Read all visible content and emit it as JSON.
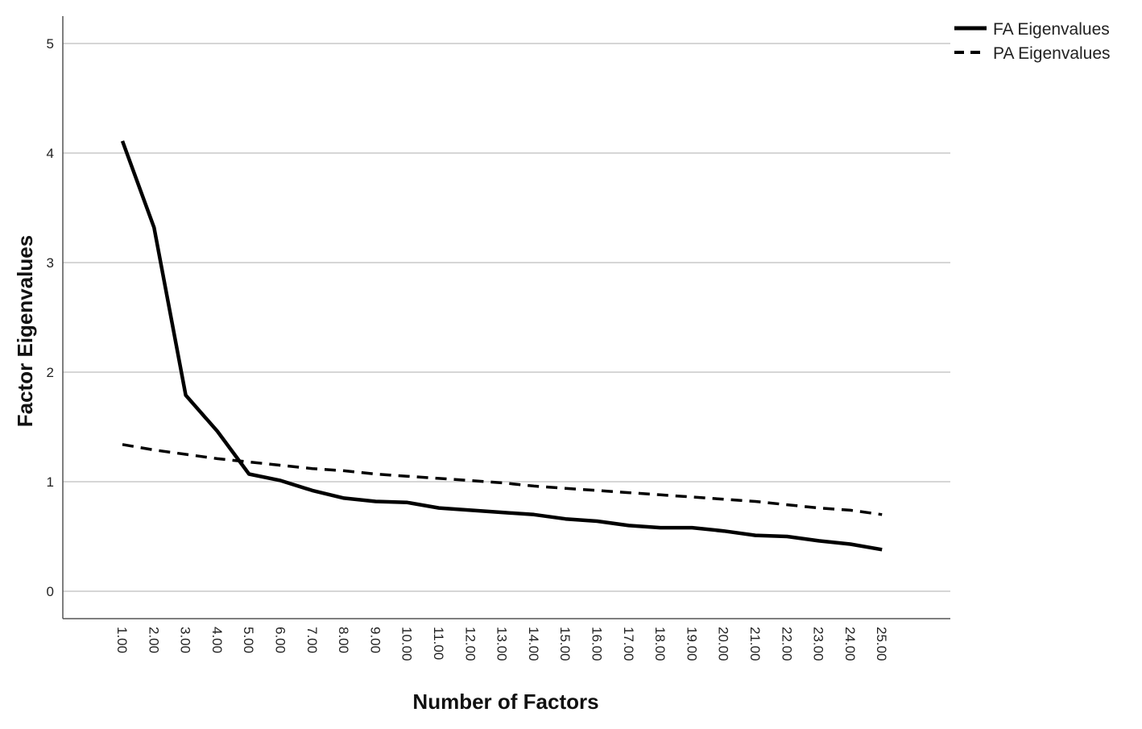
{
  "chart_data": {
    "type": "line",
    "title": "",
    "xlabel": "Number of Factors",
    "ylabel": "Factor Eigenvalues",
    "categories": [
      "1.00",
      "2.00",
      "3.00",
      "4.00",
      "5.00",
      "6.00",
      "7.00",
      "8.00",
      "9.00",
      "10.00",
      "11.00",
      "12.00",
      "13.00",
      "14.00",
      "15.00",
      "16.00",
      "17.00",
      "18.00",
      "19.00",
      "20.00",
      "21.00",
      "22.00",
      "23.00",
      "24.00",
      "25.00"
    ],
    "ylim": [
      -0.25,
      5.25
    ],
    "yticks": [
      0,
      1,
      2,
      3,
      4,
      5
    ],
    "grid": "horizontal",
    "legend_position": "top-right",
    "series": [
      {
        "name": "FA Eigenvalues",
        "style": "solid",
        "color": "#000000",
        "values": [
          4.11,
          3.32,
          1.79,
          1.46,
          1.07,
          1.01,
          0.92,
          0.85,
          0.82,
          0.81,
          0.76,
          0.74,
          0.72,
          0.7,
          0.66,
          0.64,
          0.6,
          0.58,
          0.58,
          0.55,
          0.51,
          0.5,
          0.46,
          0.43,
          0.38
        ]
      },
      {
        "name": "PA Eigenvalues",
        "style": "dashed",
        "color": "#000000",
        "values": [
          1.34,
          1.29,
          1.25,
          1.21,
          1.18,
          1.15,
          1.12,
          1.1,
          1.07,
          1.05,
          1.03,
          1.01,
          0.99,
          0.96,
          0.94,
          0.92,
          0.9,
          0.88,
          0.86,
          0.84,
          0.82,
          0.79,
          0.76,
          0.74,
          0.7
        ]
      }
    ]
  }
}
